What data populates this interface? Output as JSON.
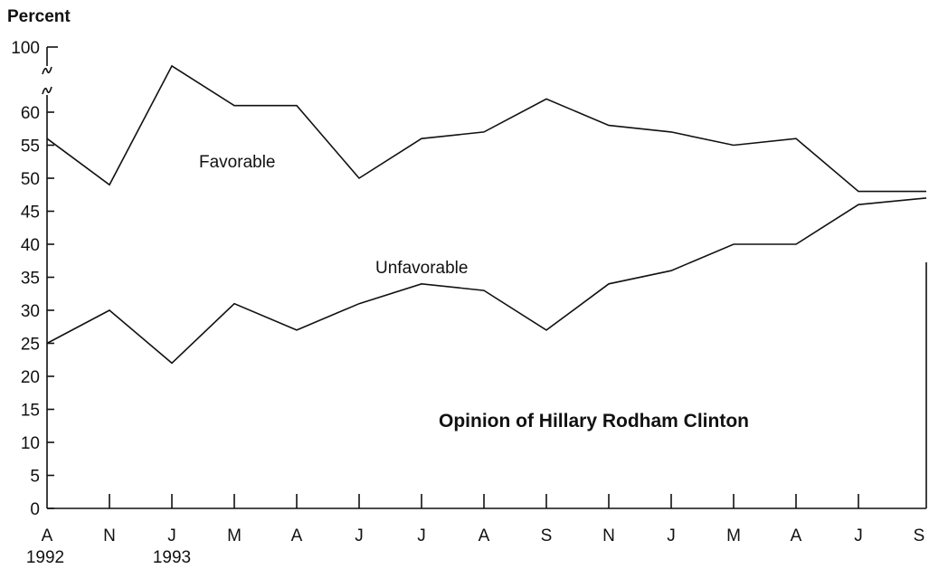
{
  "chart_data": {
    "type": "line",
    "title": "Opinion of Hillary Rodham Clinton",
    "ylabel": "Percent",
    "xlabel": "",
    "categories": [
      "A",
      "N",
      "J",
      "M",
      "A",
      "J",
      "J",
      "A",
      "S",
      "N",
      "J",
      "M",
      "A",
      "J",
      "S"
    ],
    "year_labels": [
      {
        "index": 0,
        "label": "1992"
      },
      {
        "index": 2,
        "label": "1993"
      }
    ],
    "y_ticks": [
      0,
      5,
      10,
      15,
      20,
      25,
      30,
      35,
      40,
      45,
      50,
      55,
      60,
      100
    ],
    "y_break": {
      "from": 60,
      "to": 100
    },
    "ylim": [
      0,
      100
    ],
    "grid": false,
    "series": [
      {
        "name": "Favorable",
        "values": [
          56,
          49,
          67,
          61,
          61,
          50,
          56,
          57,
          62,
          58,
          57,
          55,
          56,
          48,
          48
        ]
      },
      {
        "name": "Unfavorable",
        "values": [
          25,
          30,
          22,
          31,
          27,
          31,
          34,
          33,
          27,
          34,
          36,
          40,
          40,
          46,
          47
        ]
      }
    ]
  }
}
